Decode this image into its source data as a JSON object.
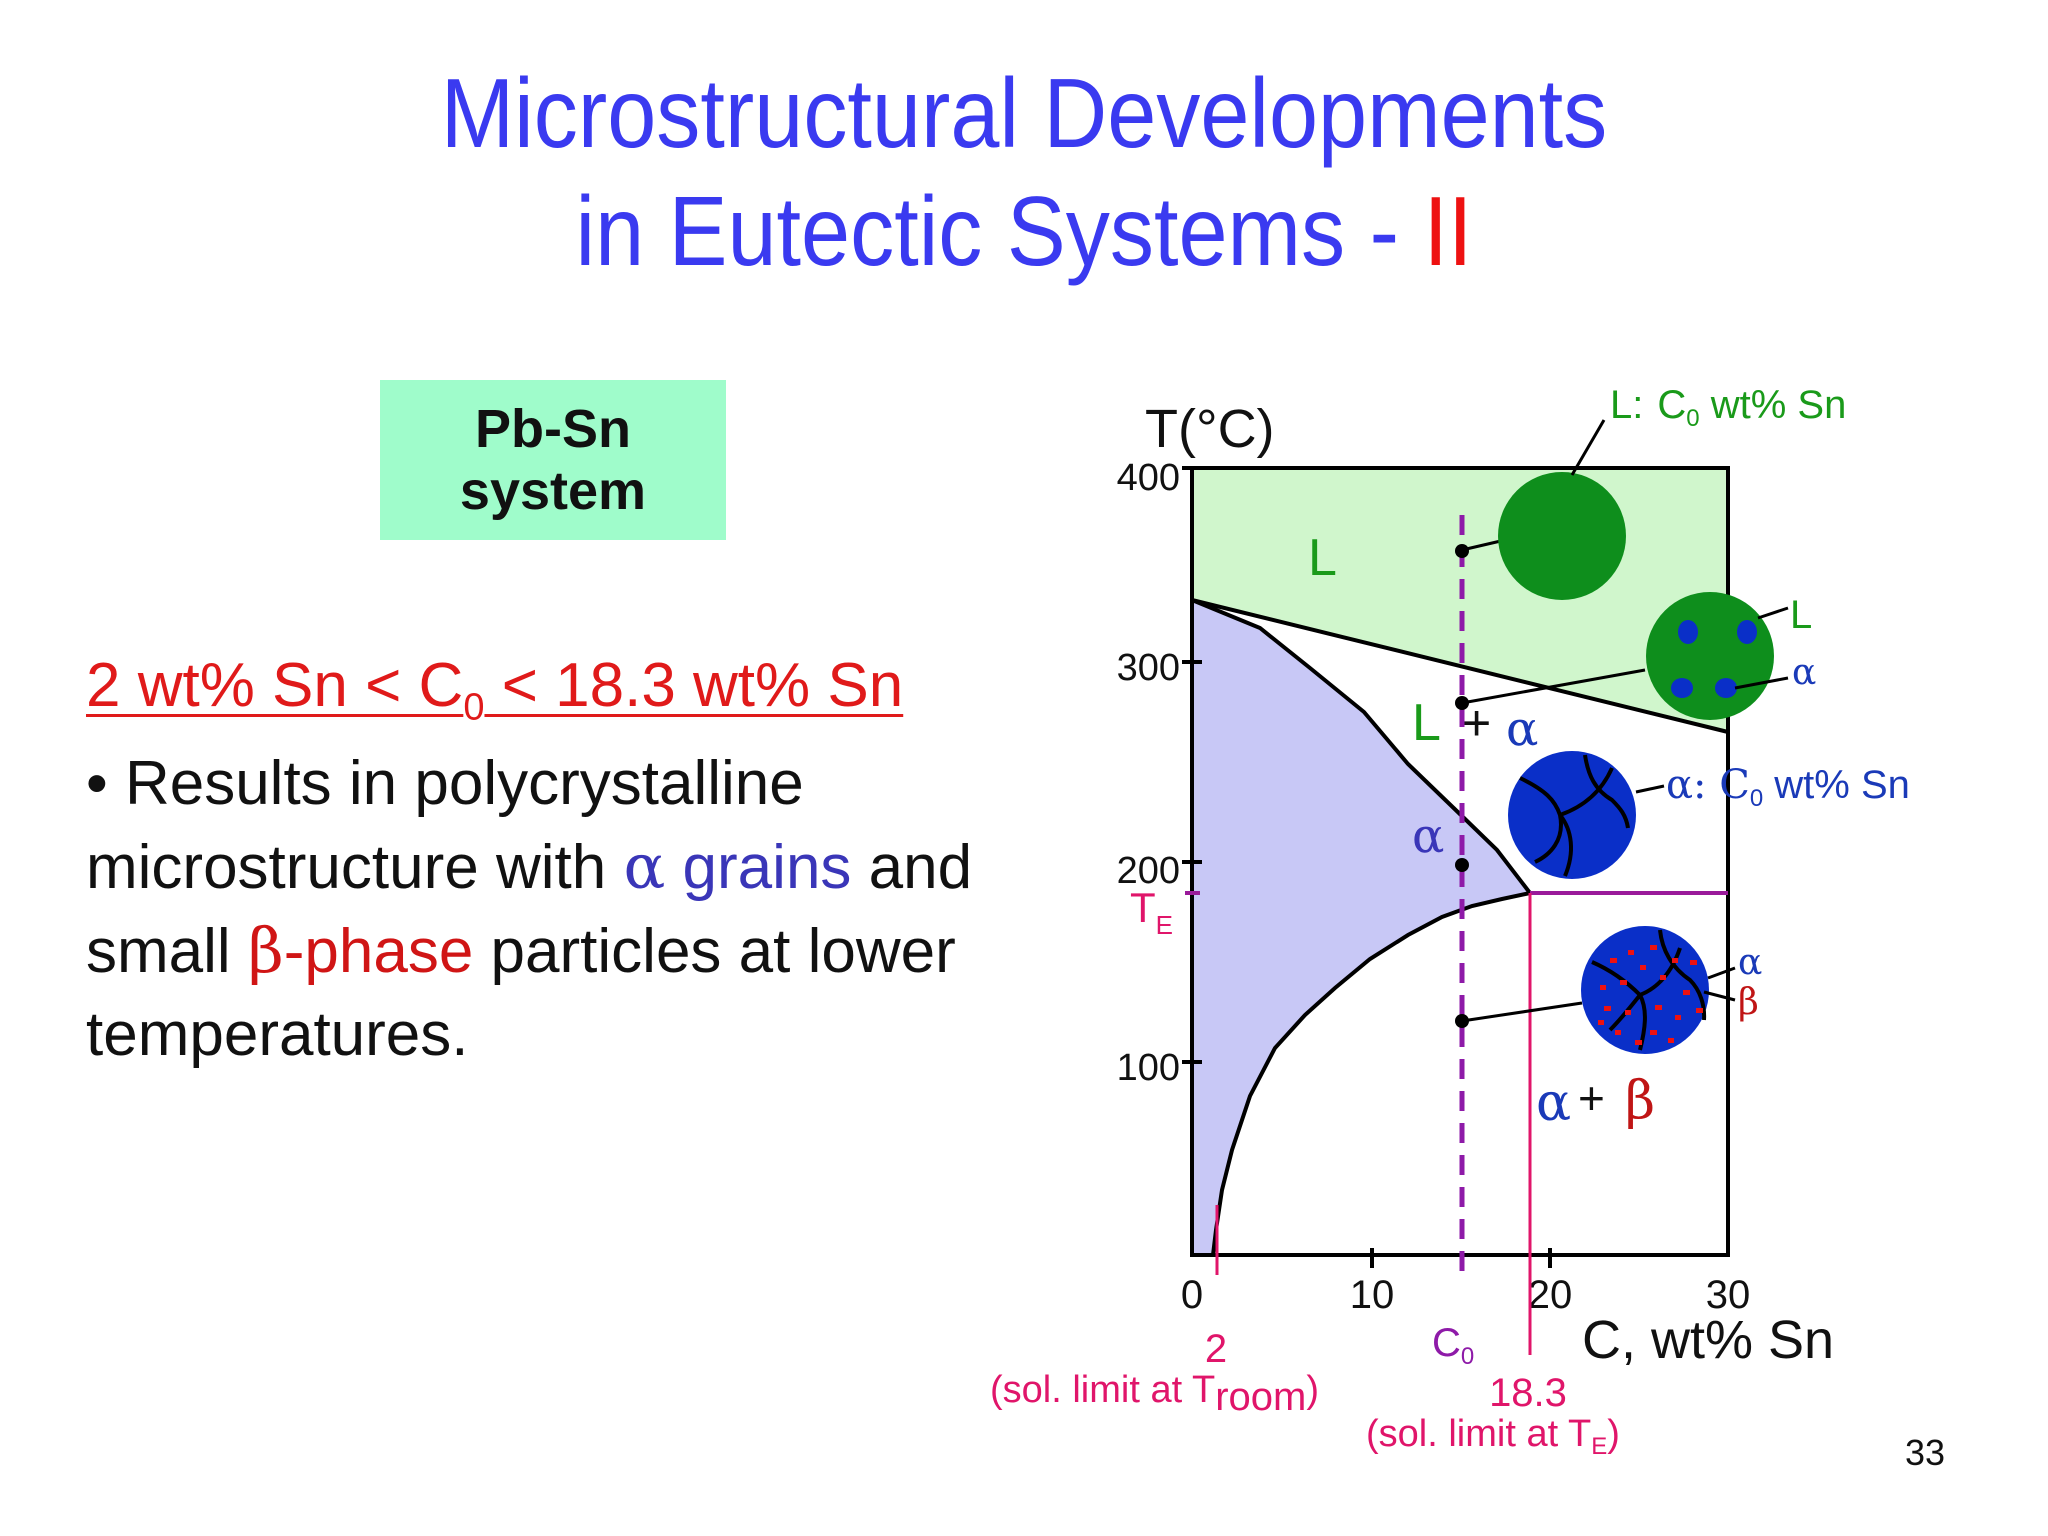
{
  "title": {
    "line1": "Microstructural Developments",
    "line2": "in Eutectic Systems - ",
    "line2_accent": "II"
  },
  "badge": {
    "line1": "Pb-Sn",
    "line2": "system"
  },
  "condition": {
    "part1": "2 wt% Sn < C",
    "sub": "0",
    "part2": " < 18.3 wt% Sn"
  },
  "bullet": {
    "mark": "•",
    "p1": " Results in polycrystalline microstructure with ",
    "alpha": "α",
    "p2": " grains",
    "p3": " and small ",
    "beta": "β",
    "p4": "-phase",
    "p5": " particles at lower temperatures."
  },
  "page_number": "33",
  "diagram": {
    "ylabel": "T(°C)",
    "xlabel": "C, wt% Sn",
    "yticks": [
      "400",
      "300",
      "200",
      "100"
    ],
    "xticks": [
      "0",
      "10",
      "20",
      "30"
    ],
    "te_label": "T",
    "te_sub": "E",
    "regions": {
      "L": "L",
      "L_plus": "L",
      "plus": "+",
      "alpha_small": "α",
      "alpha": "α",
      "ab_alpha": "α",
      "ab_plus": "+",
      "ab_beta": "β"
    },
    "callouts": {
      "liquid_L": "L:",
      "liquid_C": "C",
      "liquid_sub": "0",
      "liquid_rest": " wt% Sn",
      "mix_L": "L",
      "mix_alpha": "α",
      "alpha_label": "α: C",
      "alpha_sub": "0",
      "alpha_rest": " wt% Sn",
      "ab_alpha": "α",
      "ab_beta": "β"
    },
    "annotations": {
      "two": "2",
      "two_note_prefix": "(sol. limit at T",
      "two_note_sub": "room",
      "two_note_suffix": ")",
      "c0": "C",
      "c0_sub": "0",
      "eighteen": "18.3",
      "eighteen_note_prefix": "(sol. limit at T",
      "eighteen_note_sub": "E",
      "eighteen_note_suffix": ")"
    },
    "colors": {
      "liquid": "#d0f6cc",
      "alpha_region": "#c8c8f6",
      "liquid_blob": "#0e8e1c",
      "grain_blob": "#0a2fc8",
      "composition_line": "#8e1aa8",
      "annotation": "#e0156a",
      "callout_green": "#1a9a1a",
      "callout_blue": "#1a3ab8"
    }
  }
}
